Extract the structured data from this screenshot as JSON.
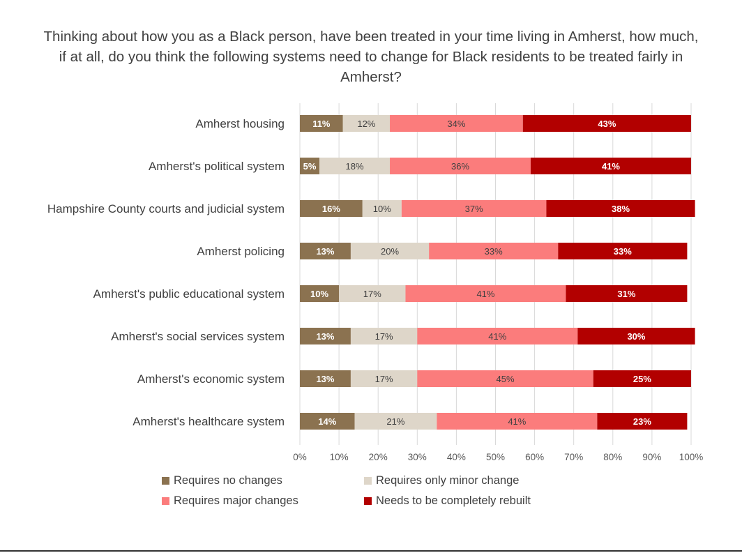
{
  "chart_data": {
    "type": "bar",
    "orientation": "horizontal",
    "stacked": true,
    "title": "Thinking about how you as a Black person, have been treated in your time living in Amherst, how much, if at all, do you think the following systems need to change for Black residents to be treated fairly in Amherst?",
    "categories": [
      "Amherst housing",
      "Amherst's political system",
      "Hampshire County courts and judicial system",
      "Amherst policing",
      "Amherst's public educational system",
      "Amherst's social services system",
      "Amherst's economic system",
      "Amherst's healthcare system"
    ],
    "series": [
      {
        "name": "Requires no changes",
        "color": "#8B7250",
        "values": [
          11,
          5,
          16,
          13,
          10,
          13,
          13,
          14
        ],
        "labels": [
          "11%",
          "5%",
          "16%",
          "13%",
          "10%",
          "13%",
          "13%",
          "14%"
        ]
      },
      {
        "name": "Requires only minor change",
        "color": "#DED6C9",
        "values": [
          12,
          18,
          10,
          20,
          17,
          17,
          17,
          21
        ],
        "labels": [
          "12%",
          "18%",
          "10%",
          "20%",
          "17%",
          "17%",
          "17%",
          "21%"
        ]
      },
      {
        "name": "Requires major changes",
        "color": "#FB7C7C",
        "values": [
          34,
          36,
          37,
          33,
          41,
          41,
          45,
          41
        ],
        "labels": [
          "34%",
          "36%",
          "37%",
          "33%",
          "41%",
          "41%",
          "45%",
          "41%"
        ]
      },
      {
        "name": "Needs to be completely rebuilt",
        "color": "#B20000",
        "values": [
          43,
          41,
          38,
          33,
          31,
          30,
          25,
          23
        ],
        "labels": [
          "43%",
          "41%",
          "38%",
          "33%",
          "31%",
          "30%",
          "25%",
          "23%"
        ]
      }
    ],
    "xlim": [
      0,
      100
    ],
    "x_ticks": [
      "0%",
      "10%",
      "20%",
      "30%",
      "40%",
      "50%",
      "60%",
      "70%",
      "80%",
      "90%",
      "100%"
    ],
    "grid": "vertical",
    "legend_position": "bottom",
    "label_colors": {
      "dark": "#404040",
      "light": "#ffffff"
    }
  }
}
